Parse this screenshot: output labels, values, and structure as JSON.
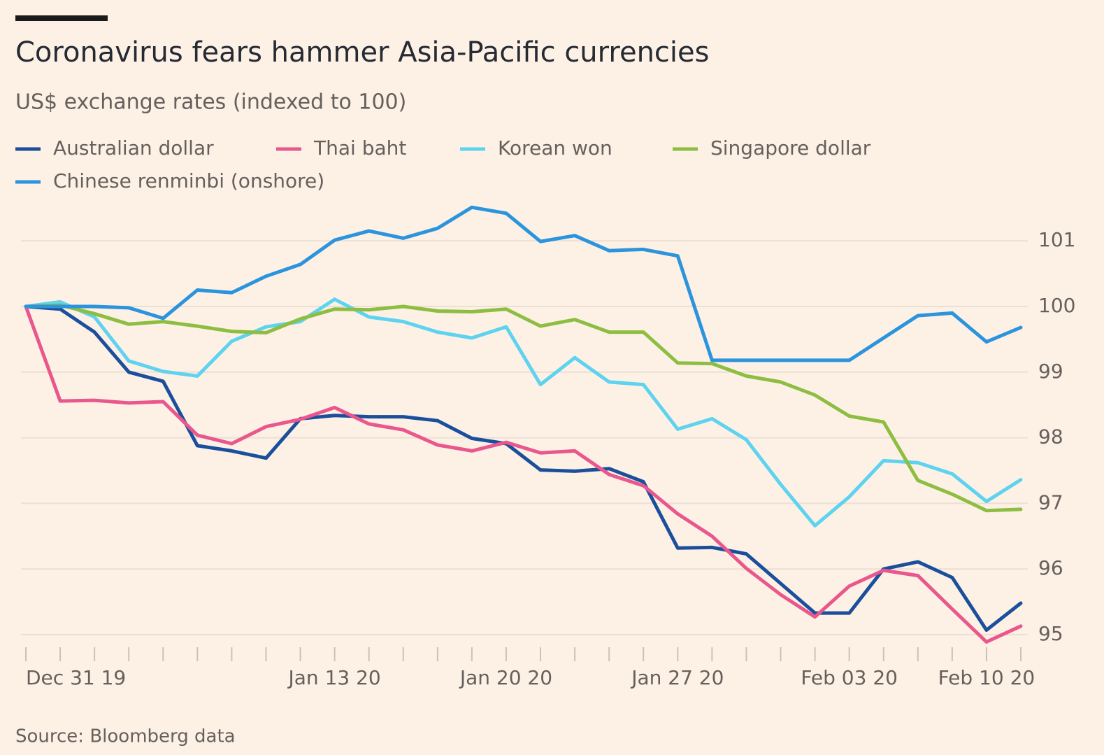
{
  "chart_data": {
    "type": "line",
    "title": "Coronavirus fears hammer Asia-Pacific currencies",
    "subtitle": "US$ exchange rates (indexed to 100)",
    "source": "Source: Bloomberg data",
    "categories": [
      "Dec 31 19",
      null,
      null,
      null,
      null,
      null,
      null,
      null,
      null,
      "Jan 13 20",
      null,
      null,
      null,
      null,
      "Jan 20 20",
      null,
      null,
      null,
      null,
      "Jan 27 20",
      null,
      null,
      null,
      null,
      "Feb 03 20",
      null,
      null,
      null,
      "Feb 10 20",
      null
    ],
    "series": [
      {
        "name": "Australian dollar",
        "color": "#1b4f9c",
        "values": [
          100,
          99.96,
          99.61,
          99.0,
          98.86,
          97.88,
          97.8,
          97.69,
          98.29,
          98.34,
          98.32,
          98.32,
          98.26,
          97.99,
          97.91,
          97.51,
          97.49,
          97.53,
          97.33,
          96.32,
          96.33,
          96.23,
          95.78,
          95.33,
          95.33,
          96.0,
          96.11,
          95.87,
          95.07,
          95.48
        ]
      },
      {
        "name": "Thai baht",
        "color": "#e9578c",
        "values": [
          100,
          98.56,
          98.57,
          98.53,
          98.55,
          98.04,
          97.91,
          98.17,
          98.28,
          98.46,
          98.21,
          98.12,
          97.89,
          97.8,
          97.93,
          97.77,
          97.8,
          97.44,
          97.27,
          96.84,
          96.5,
          96.01,
          95.61,
          95.27,
          95.74,
          95.98,
          95.9,
          95.39,
          94.89,
          95.13
        ]
      },
      {
        "name": "Korean won",
        "color": "#5ed3ef",
        "values": [
          100,
          100.07,
          99.84,
          99.17,
          99.01,
          98.94,
          99.47,
          99.69,
          99.77,
          100.11,
          99.84,
          99.77,
          99.61,
          99.52,
          99.69,
          98.81,
          99.22,
          98.85,
          98.81,
          98.13,
          98.29,
          97.97,
          97.29,
          96.66,
          97.1,
          97.65,
          97.62,
          97.45,
          97.03,
          97.36
        ]
      },
      {
        "name": "Singapore dollar",
        "color": "#8dbe42",
        "values": [
          100,
          100.02,
          99.89,
          99.73,
          99.77,
          99.7,
          99.62,
          99.6,
          99.81,
          99.96,
          99.95,
          100.0,
          99.93,
          99.92,
          99.96,
          99.7,
          99.8,
          99.61,
          99.61,
          99.14,
          99.13,
          98.94,
          98.85,
          98.65,
          98.33,
          98.24,
          97.35,
          97.14,
          96.89,
          96.91
        ]
      },
      {
        "name": "Chinese renminbi (onshore)",
        "color": "#2b94dc",
        "values": [
          100,
          100,
          100,
          99.98,
          99.82,
          100.25,
          100.21,
          100.46,
          100.64,
          101.01,
          101.15,
          101.04,
          101.19,
          101.51,
          101.42,
          100.99,
          101.08,
          100.85,
          100.87,
          100.77,
          99.18,
          99.18,
          99.18,
          99.18,
          99.18,
          99.52,
          99.86,
          99.9,
          99.46,
          99.68
        ]
      }
    ],
    "ylim": [
      94.8,
      101.7
    ],
    "yticks": [
      95,
      96,
      97,
      98,
      99,
      100,
      101
    ],
    "grid": true,
    "y_axis_side": "right"
  }
}
